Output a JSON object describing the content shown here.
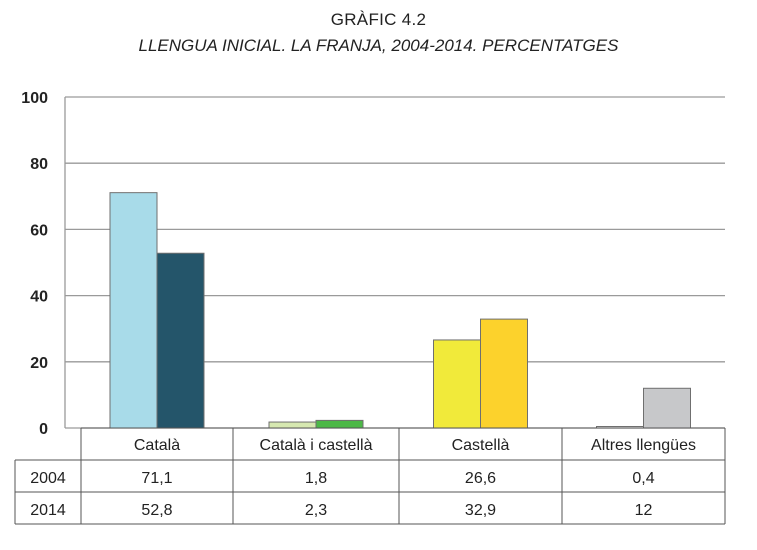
{
  "chart_data": {
    "type": "bar",
    "title": "GRÀFIC 4.2",
    "subtitle": "LLENGUA INICIAL. LA FRANJA, 2004-2014. PERCENTATGES",
    "categories": [
      "Català",
      "Català i castellà",
      "Castellà",
      "Altres llengües"
    ],
    "series": [
      {
        "name": "2004",
        "values": [
          71.1,
          1.8,
          26.6,
          0.4
        ],
        "labels": [
          "71,1",
          "1,8",
          "26,6",
          "0,4"
        ]
      },
      {
        "name": "2014",
        "values": [
          52.8,
          2.3,
          32.9,
          12
        ],
        "labels": [
          "52,8",
          "2,3",
          "32,9",
          "12"
        ]
      }
    ],
    "colors": [
      [
        "#a8dbe9",
        "#24556a"
      ],
      [
        "#d6e8b0",
        "#4cb847"
      ],
      [
        "#f1ea3a",
        "#fcd22c"
      ],
      [
        "#e9e9e9",
        "#c7c8ca"
      ]
    ],
    "yticks": [
      "0",
      "20",
      "40",
      "60",
      "80",
      "100"
    ],
    "ylim": [
      0,
      100
    ],
    "grid": true,
    "legend": "data table below chart"
  }
}
